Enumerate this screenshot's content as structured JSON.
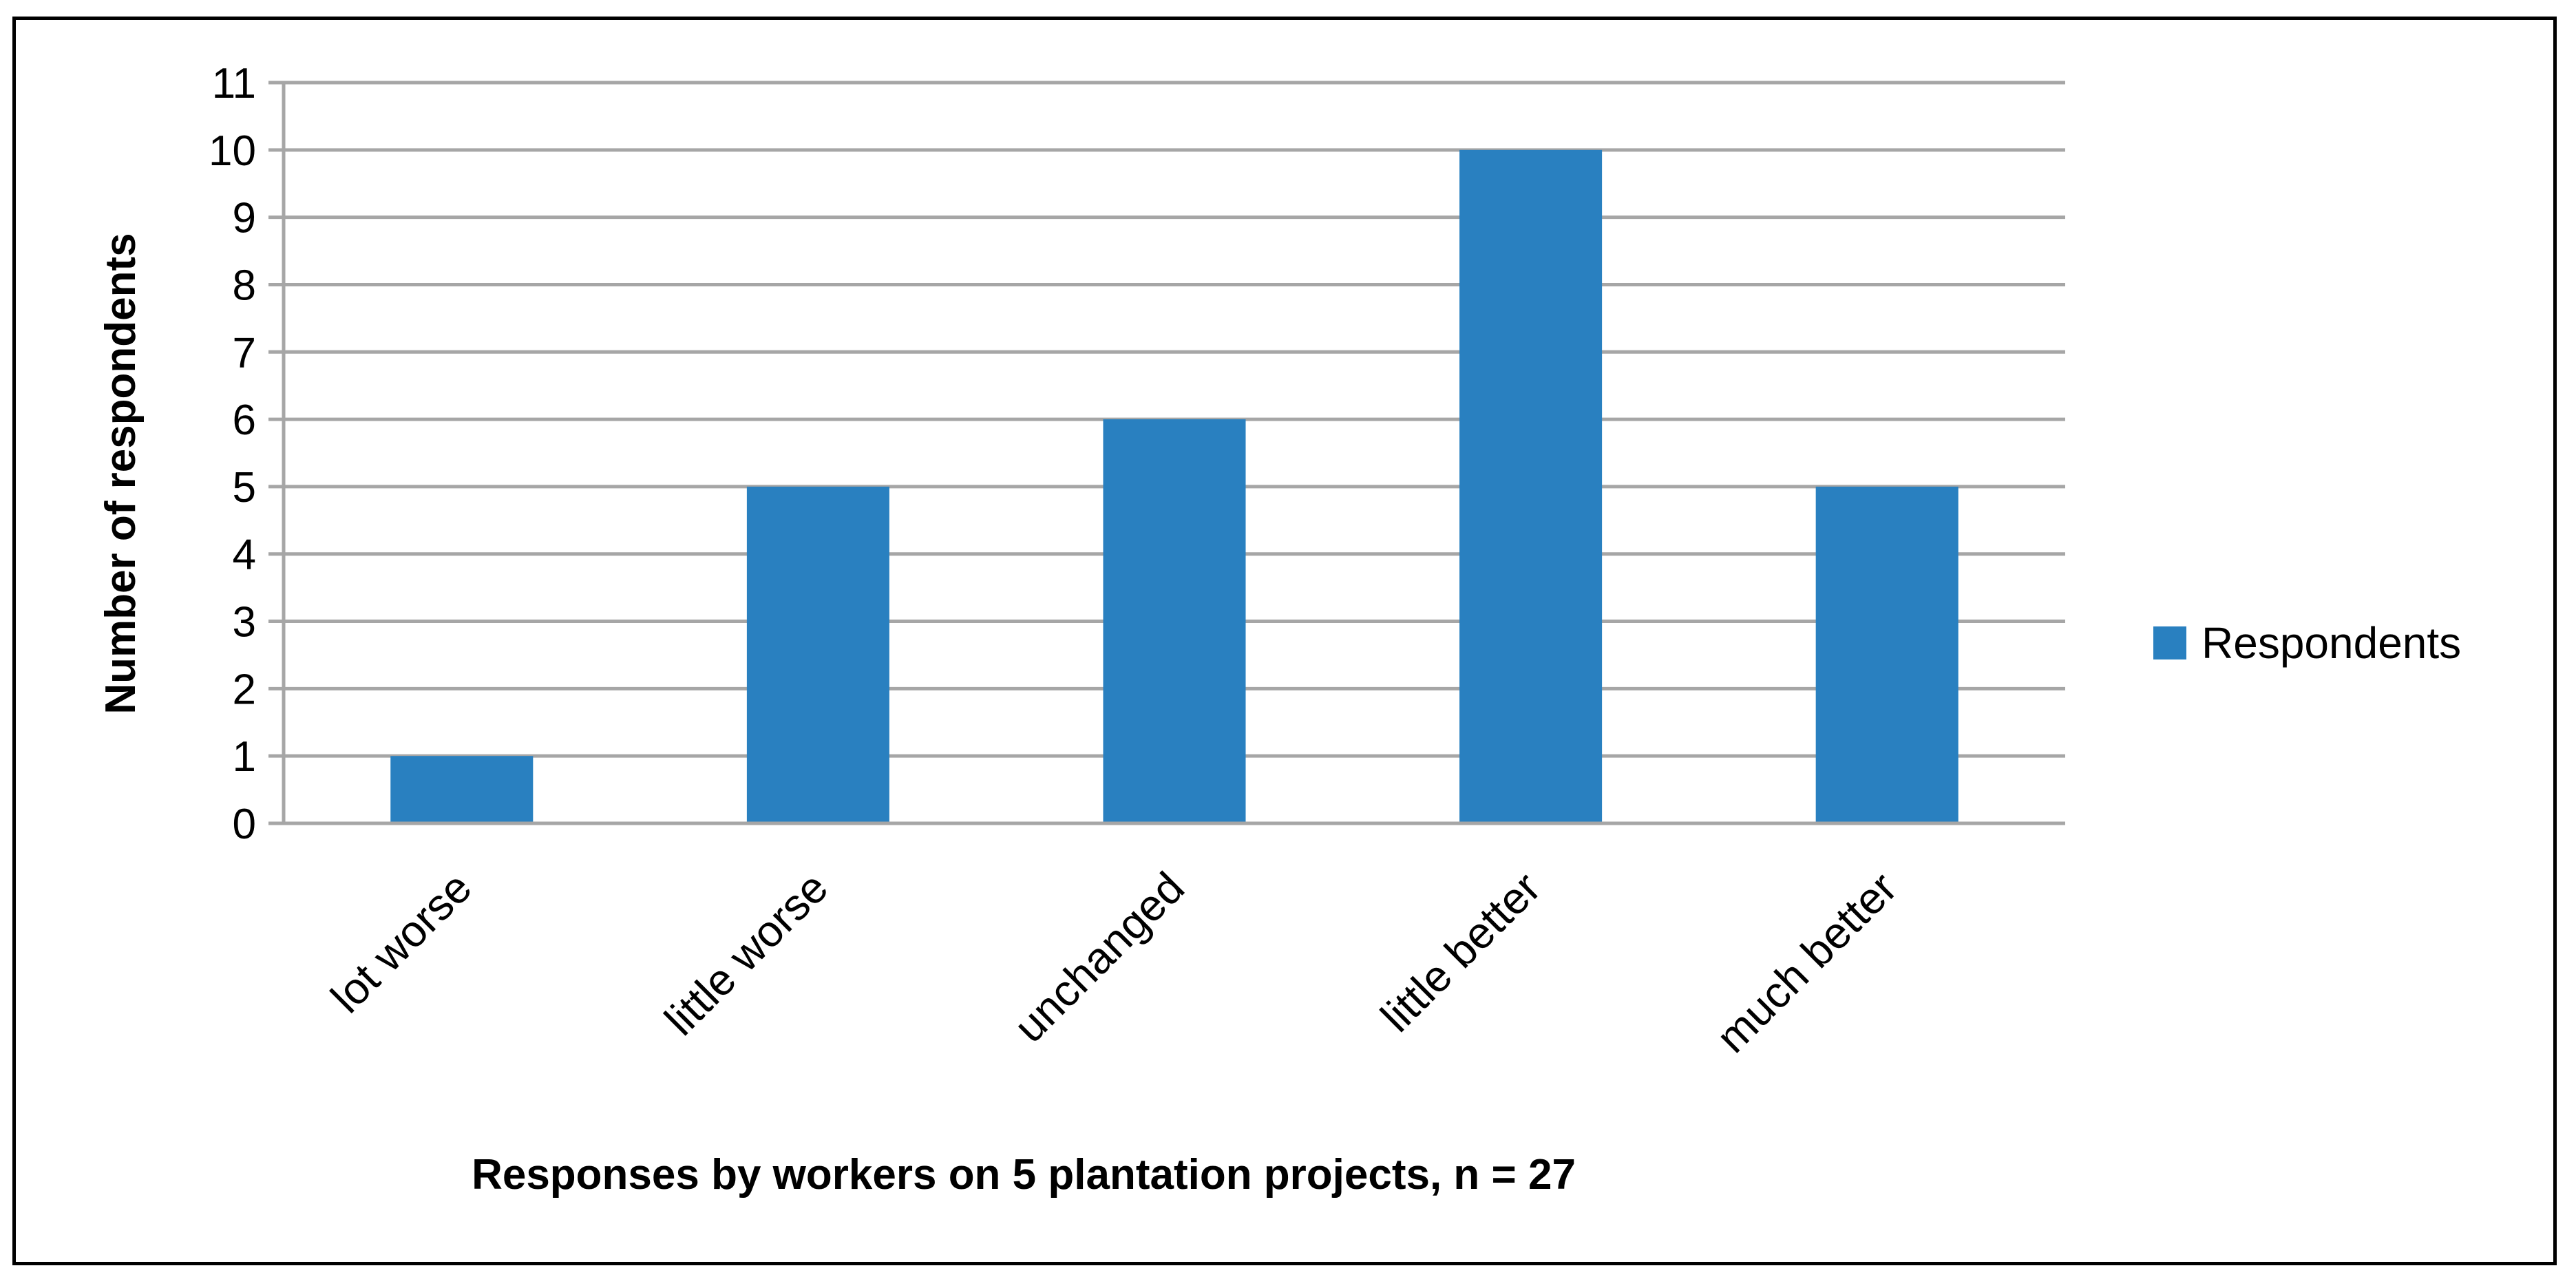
{
  "chart_data": {
    "type": "bar",
    "categories": [
      "lot worse",
      "little worse",
      "unchanged",
      "little better",
      "much better"
    ],
    "series": [
      {
        "name": "Respondents",
        "values": [
          1,
          5,
          6,
          10,
          5
        ],
        "color": "#2980C0"
      }
    ],
    "title": "",
    "xlabel": "Responses by workers on 5 plantation projects, n = 27",
    "ylabel": "Number of respondents",
    "ylim": [
      0,
      11
    ],
    "yticks": [
      "0",
      "1",
      "2",
      "3",
      "4",
      "5",
      "6",
      "7",
      "8",
      "9",
      "10",
      "11"
    ],
    "grid": true,
    "grid_color": "#A6A6A6",
    "legend": "right"
  }
}
